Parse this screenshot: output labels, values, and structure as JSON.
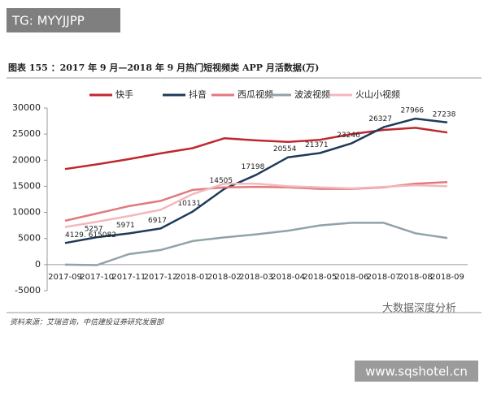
{
  "watermark": "TG: MYYJJPP",
  "source": "资料来源：艾瑞咨询，中信建投证券研究发展部",
  "brand": "大数据深度分析",
  "site": "www.sqshotel.cn",
  "chart_data": {
    "type": "line",
    "title": "图表 155 ：2017 年 9 月—2018 年 9 月热门短视频类 APP 月活数据(万)",
    "categories": [
      "2017-09",
      "2017-10",
      "2017-11",
      "2017-12",
      "2018-01",
      "2018-02",
      "2018-03",
      "2018-04",
      "2018-05",
      "2018-06",
      "2018-07",
      "2018-08",
      "2018-09"
    ],
    "ylim": [
      -5000,
      30000
    ],
    "yticks": [
      -5000,
      0,
      5000,
      10000,
      15000,
      20000,
      25000,
      30000
    ],
    "series": [
      {
        "name": "快手",
        "color": "#c0272d",
        "values": [
          18300,
          19200,
          20200,
          21300,
          22300,
          24200,
          23800,
          23500,
          23900,
          25000,
          25800,
          26200,
          25300
        ]
      },
      {
        "name": "抖音",
        "color": "#1f3a5a",
        "values": [
          4129.615082,
          5257,
          5971,
          6917,
          10131,
          14505,
          17198,
          20554,
          21371,
          23246,
          26327,
          27966,
          27238
        ],
        "value_labels": [
          "4129. 615082",
          "5257",
          "5971",
          "6917",
          "10131",
          "14505",
          "17198",
          "20554",
          "21371",
          "23246",
          "26327",
          "27966",
          "27238"
        ]
      },
      {
        "name": "西瓜视频",
        "color": "#e07a7f",
        "values": [
          8400,
          9800,
          11200,
          12200,
          14300,
          14800,
          14900,
          14800,
          14500,
          14500,
          14800,
          15500,
          15800
        ]
      },
      {
        "name": "波波视频",
        "color": "#8fa3a8",
        "values": [
          0,
          -100,
          2000,
          2800,
          4500,
          5200,
          5800,
          6500,
          7500,
          8000,
          8000,
          6000,
          5100
        ]
      },
      {
        "name": "火山小视频",
        "color": "#f3b8bc",
        "values": [
          7200,
          8200,
          9300,
          10500,
          13500,
          15500,
          15500,
          15000,
          14800,
          14600,
          14900,
          15200,
          15000
        ]
      }
    ]
  }
}
